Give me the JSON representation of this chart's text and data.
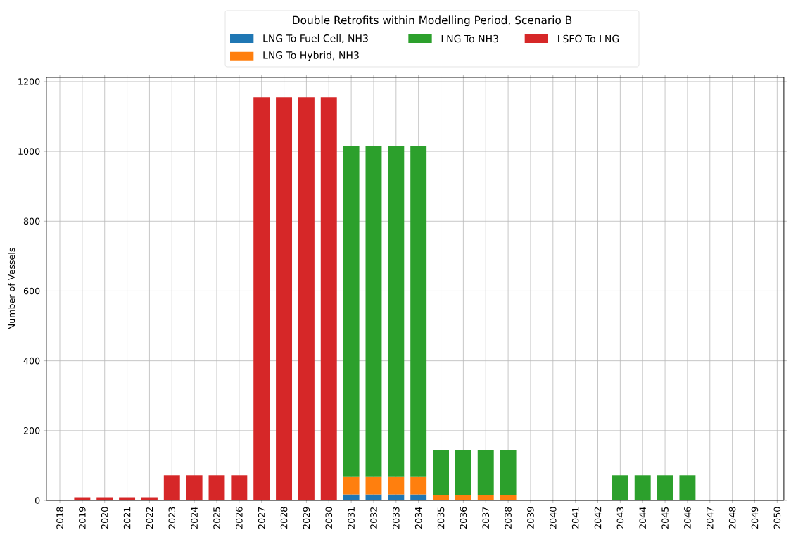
{
  "chart_data": {
    "type": "bar",
    "stacked": true,
    "legend_title": "Double Retrofits within Modelling Period, Scenario B",
    "ylabel": "Number of Vessels",
    "categories": [
      "2018",
      "2019",
      "2020",
      "2021",
      "2022",
      "2023",
      "2024",
      "2025",
      "2026",
      "2027",
      "2028",
      "2029",
      "2030",
      "2031",
      "2032",
      "2033",
      "2034",
      "2035",
      "2036",
      "2037",
      "2038",
      "2039",
      "2040",
      "2041",
      "2042",
      "2043",
      "2044",
      "2045",
      "2046",
      "2047",
      "2048",
      "2049",
      "2050"
    ],
    "series": [
      {
        "name": "LNG To Fuel Cell, NH3",
        "color": "#1f77b4",
        "values": [
          null,
          null,
          null,
          null,
          null,
          null,
          null,
          null,
          null,
          null,
          null,
          null,
          null,
          17,
          17,
          17,
          17,
          null,
          null,
          null,
          null,
          null,
          null,
          null,
          null,
          null,
          null,
          null,
          null,
          null,
          null,
          null,
          null
        ]
      },
      {
        "name": "LNG To Hybrid, NH3",
        "color": "#ff7f0e",
        "values": [
          null,
          null,
          null,
          null,
          null,
          null,
          null,
          null,
          null,
          null,
          null,
          null,
          null,
          50,
          50,
          50,
          50,
          16,
          16,
          16,
          16,
          null,
          null,
          null,
          null,
          null,
          null,
          null,
          null,
          null,
          null,
          null,
          null
        ]
      },
      {
        "name": "LNG To NH3",
        "color": "#2ca02c",
        "values": [
          null,
          null,
          null,
          null,
          null,
          null,
          null,
          null,
          null,
          null,
          null,
          null,
          null,
          948,
          948,
          948,
          948,
          129,
          129,
          129,
          129,
          null,
          null,
          null,
          null,
          72,
          72,
          72,
          72,
          null,
          null,
          null,
          null
        ]
      },
      {
        "name": "LSFO To LNG",
        "color": "#d62728",
        "values": [
          null,
          9,
          9,
          9,
          9,
          72,
          72,
          72,
          72,
          1155,
          1155,
          1155,
          1155,
          null,
          null,
          null,
          null,
          null,
          null,
          null,
          null,
          null,
          null,
          null,
          null,
          null,
          null,
          null,
          null,
          null,
          null,
          null,
          null
        ]
      }
    ],
    "ylim": [
      0,
      1212
    ],
    "yticks": [
      0,
      200,
      400,
      600,
      800,
      1000,
      1200
    ],
    "grid": true,
    "legend": "top"
  }
}
